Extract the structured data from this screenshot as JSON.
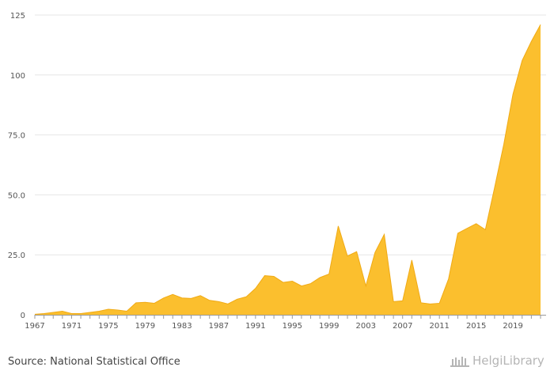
{
  "chart_data": {
    "type": "area",
    "title": "",
    "xlabel": "",
    "ylabel": "",
    "x": [
      1967,
      1968,
      1969,
      1970,
      1971,
      1972,
      1973,
      1974,
      1975,
      1976,
      1977,
      1978,
      1979,
      1980,
      1981,
      1982,
      1983,
      1984,
      1985,
      1986,
      1987,
      1988,
      1989,
      1990,
      1991,
      1992,
      1993,
      1994,
      1995,
      1996,
      1997,
      1998,
      1999,
      2000,
      2001,
      2002,
      2003,
      2004,
      2005,
      2006,
      2007,
      2008,
      2009,
      2010,
      2011,
      2012,
      2013,
      2014,
      2015,
      2016,
      2017,
      2018,
      2019,
      2020,
      2021,
      2022
    ],
    "values": [
      0.2,
      0.5,
      1.0,
      1.5,
      0.5,
      0.5,
      1.0,
      1.5,
      2.3,
      2.0,
      1.5,
      5.0,
      5.2,
      4.8,
      7.0,
      8.5,
      7.0,
      6.8,
      8.0,
      6.0,
      5.5,
      4.5,
      6.5,
      7.5,
      11.0,
      16.3,
      16.0,
      13.5,
      14.0,
      12.0,
      13.0,
      15.5,
      17.0,
      37.0,
      24.5,
      26.3,
      12.0,
      26.0,
      33.5,
      5.5,
      5.8,
      22.8,
      5.0,
      4.5,
      4.8,
      15.0,
      34.0,
      36.0,
      38.0,
      35.5,
      53.0,
      71.0,
      92.0,
      106.0,
      114.0,
      121.0
    ],
    "x_ticks": [
      "1967",
      "1971",
      "1975",
      "1979",
      "1983",
      "1987",
      "1991",
      "1995",
      "1999",
      "2003",
      "2007",
      "2011",
      "2015",
      "2019"
    ],
    "y_ticks": [
      "0",
      "25.0",
      "50.0",
      "75.0",
      "100",
      "125"
    ],
    "ylim": [
      0,
      125
    ],
    "xlim": [
      1967,
      2022
    ],
    "grid": true,
    "legend": "none",
    "fill_color": "#FBBF2E",
    "line_color": "#F0AA14"
  },
  "footer": {
    "source": "Source: National Statistical Office",
    "brand": "HelgiLibrary"
  }
}
